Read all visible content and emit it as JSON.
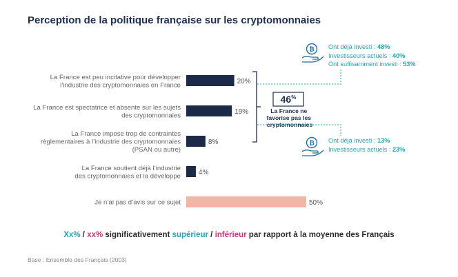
{
  "title": "Perception de la politique française sur les cryptomonnaies",
  "colors": {
    "bar": "#1c2a4a",
    "bar_neutral": "#f2b6a6",
    "teal": "#2aa4b0",
    "pink": "#d6337a",
    "navy": "#1f2d4e"
  },
  "chart_data": {
    "type": "bar",
    "orientation": "horizontal",
    "categories": [
      [
        "La France est peu incitative pour développer",
        "l’industrie des cryptomonnaies en France"
      ],
      [
        "La France est spectatrice et absente sur les sujets",
        "des cryptomonnaies"
      ],
      [
        "La France impose trop de contraintes",
        "règlementaires à l’industrie des cryptomonnaies",
        "(PSAN ou autre)"
      ],
      [
        "La France soutient déjà l’industrie",
        "des cryptomonnaies et la développe"
      ],
      [
        "Je n’ai pas d’avis sur ce sujet"
      ]
    ],
    "values": [
      20,
      19,
      8,
      4,
      50
    ],
    "value_labels": [
      "20%",
      "19%",
      "8%",
      "4%",
      "50%"
    ],
    "xlim": [
      0,
      50
    ],
    "grid": false
  },
  "callout": {
    "value": "46%",
    "value_number": "46",
    "value_unit": "%",
    "caption": [
      "La France ne",
      "favorise pas les",
      "cryptomonnaies"
    ]
  },
  "annotations": [
    {
      "icon": "coin-hand-icon",
      "lines": [
        {
          "text": "Ont déjà investi : ",
          "value": "48%"
        },
        {
          "text": "Investisseurs actuels : ",
          "value": "40%"
        },
        {
          "text": "Ont suffisamment investi : ",
          "value": "53%"
        }
      ]
    },
    {
      "icon": "coin-hand-icon",
      "lines": [
        {
          "text": "Ont déjà investi : ",
          "value": "13%"
        },
        {
          "text": "Investisseurs actuels : ",
          "value": "23%"
        }
      ]
    }
  ],
  "legend": {
    "sup": "Xx%",
    "slash1": " / ",
    "inf": "xx%",
    "text1": " significativement ",
    "sup_word": "supérieur",
    "slash2": " / ",
    "inf_word": "inférieur",
    "text2": " par rapport à la moyenne des Français"
  },
  "base": "Base : Ensemble des Français (2003)"
}
